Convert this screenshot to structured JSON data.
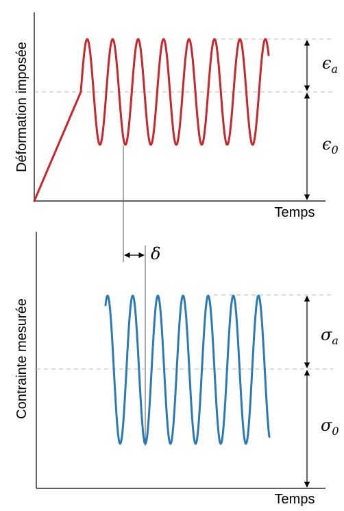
{
  "colors": {
    "strain_curve": "#c8262b",
    "stress_curve": "#2a7ab8",
    "axis": "#000000",
    "guide_dashed": "#b8b8b8",
    "connector": "#555555"
  },
  "top_panel": {
    "ylabel": "Déformation imposée",
    "xlabel": "Temps",
    "amplitude_symbol": "ϵ",
    "amplitude_subscript": "a",
    "mean_symbol": "ϵ",
    "mean_subscript": "0"
  },
  "bottom_panel": {
    "ylabel": "Contrainte mesurée",
    "xlabel": "Temps",
    "amplitude_symbol": "σ",
    "amplitude_subscript": "a",
    "mean_symbol": "σ",
    "mean_subscript": "0"
  },
  "phase_lag": {
    "symbol": "δ"
  },
  "icons": {
    "double_arrow": "vertical-double-arrow-icon",
    "lag_arrow": "horizontal-double-arrow-icon"
  }
}
